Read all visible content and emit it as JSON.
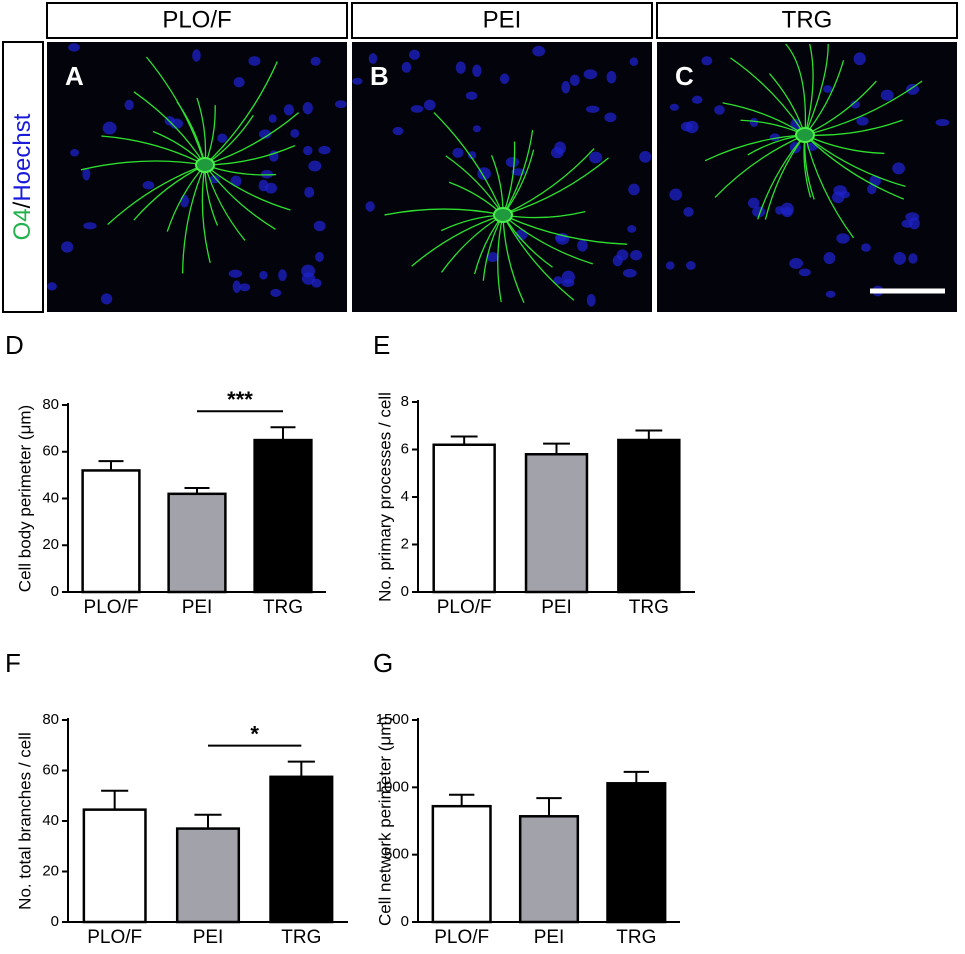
{
  "images": {
    "headers": [
      "PLO/F",
      "PEI",
      "TRG"
    ],
    "panel_labels": [
      "A",
      "B",
      "C"
    ],
    "stain": {
      "marker": "O4",
      "separator": "/",
      "nuclear": "Hoechst"
    }
  },
  "chart_data": [
    {
      "type": "bar",
      "panel_label": "D",
      "ylabel": "Cell body perimeter (μm)",
      "categories": [
        "PLO/F",
        "PEI",
        "TRG"
      ],
      "values": [
        52,
        42,
        65
      ],
      "errors": [
        4,
        2.5,
        5.5
      ],
      "colors": [
        "#ffffff",
        "#a2a2aa",
        "#000000"
      ],
      "ylim": [
        0,
        80
      ],
      "yticks": [
        0,
        20,
        40,
        60,
        80
      ],
      "annotations": [
        {
          "text": "***",
          "between": [
            "PEI",
            "TRG"
          ]
        }
      ]
    },
    {
      "type": "bar",
      "panel_label": "E",
      "ylabel": "No. primary processes / cell",
      "categories": [
        "PLO/F",
        "PEI",
        "TRG"
      ],
      "values": [
        6.2,
        5.8,
        6.4
      ],
      "errors": [
        0.35,
        0.45,
        0.4
      ],
      "colors": [
        "#ffffff",
        "#a2a2aa",
        "#000000"
      ],
      "ylim": [
        0,
        8
      ],
      "yticks": [
        0,
        2,
        4,
        6,
        8
      ]
    },
    {
      "type": "bar",
      "panel_label": "F",
      "ylabel": "No. total branches / cell",
      "categories": [
        "PLO/F",
        "PEI",
        "TRG"
      ],
      "values": [
        44.5,
        37,
        57.5
      ],
      "errors": [
        7.5,
        5.5,
        6
      ],
      "colors": [
        "#ffffff",
        "#a2a2aa",
        "#000000"
      ],
      "ylim": [
        0,
        80
      ],
      "yticks": [
        0,
        20,
        40,
        60,
        80
      ],
      "annotations": [
        {
          "text": "*",
          "between": [
            "PEI",
            "TRG"
          ]
        }
      ]
    },
    {
      "type": "bar",
      "panel_label": "G",
      "ylabel": "Cell network perimeter (μm)",
      "categories": [
        "PLO/F",
        "PEI",
        "TRG"
      ],
      "values": [
        860,
        785,
        1030
      ],
      "errors": [
        85,
        135,
        85
      ],
      "colors": [
        "#ffffff",
        "#a2a2aa",
        "#000000"
      ],
      "ylim": [
        0,
        1500
      ],
      "yticks": [
        0,
        500,
        1000,
        1500
      ]
    }
  ]
}
